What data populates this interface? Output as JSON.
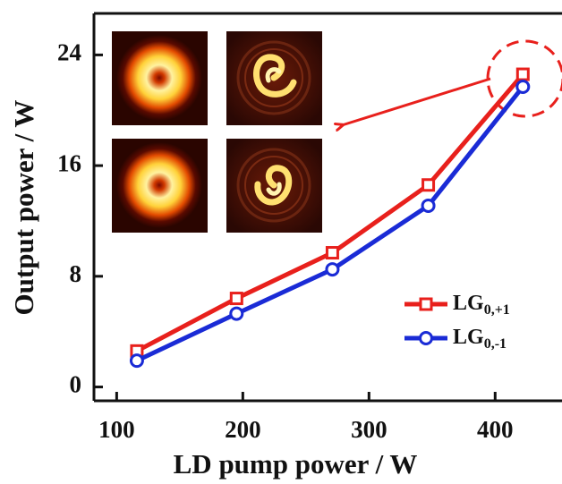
{
  "chart_data": {
    "type": "line",
    "xlabel": "LD pump power / W",
    "ylabel": "Output power / W",
    "xlim": [
      82,
      453
    ],
    "xticks": [
      100,
      200,
      300,
      400
    ],
    "ylim": [
      -1,
      27
    ],
    "yticks": [
      0,
      8,
      16,
      24
    ],
    "x": [
      116,
      195,
      271,
      347,
      422
    ],
    "series": [
      {
        "name": "LG",
        "name_subscript": "0,+1",
        "color": "#e8201c",
        "marker": "square",
        "values": [
          2.6,
          6.4,
          9.7,
          14.6,
          22.6
        ]
      },
      {
        "name": "LG",
        "name_subscript": "0,-1",
        "color": "#1a2bd6",
        "marker": "circle",
        "values": [
          1.9,
          5.3,
          8.5,
          13.1,
          21.7
        ]
      }
    ]
  }
}
